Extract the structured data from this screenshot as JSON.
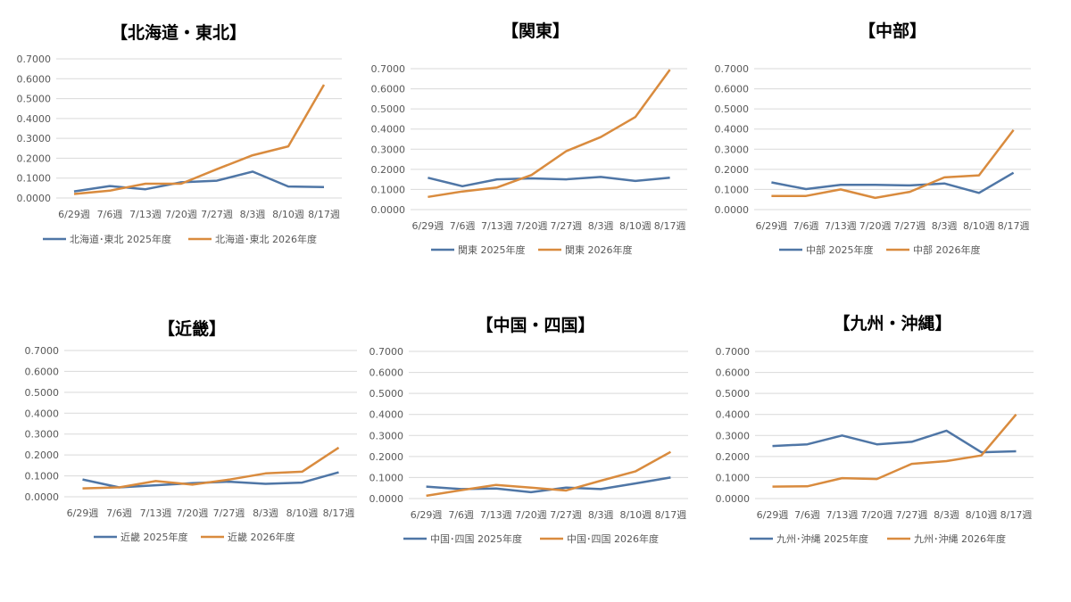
{
  "colors": {
    "s2025": "#4F76A6",
    "s2026": "#D98B3E",
    "grid": "#D9D9D9"
  },
  "chart_data": [
    {
      "type": "line",
      "title": "【北海道・東北】",
      "categories": [
        "6/29週",
        "7/6週",
        "7/13週",
        "7/20週",
        "7/27週",
        "8/3週",
        "8/10週",
        "8/17週"
      ],
      "ylim": [
        0,
        0.7
      ],
      "yticks": [
        "0.0000",
        "0.1000",
        "0.2000",
        "0.3000",
        "0.4000",
        "0.5000",
        "0.6000",
        "0.7000"
      ],
      "grid": true,
      "legend": "bottom",
      "series": [
        {
          "name": "北海道･東北 2025年度",
          "values": [
            0.033,
            0.06,
            0.044,
            0.079,
            0.087,
            0.133,
            0.058,
            0.055
          ]
        },
        {
          "name": "北海道･東北 2026年度",
          "values": [
            0.02,
            0.037,
            0.072,
            0.072,
            0.145,
            0.215,
            0.26,
            0.57
          ]
        }
      ]
    },
    {
      "type": "line",
      "title": "【関東】",
      "categories": [
        "6/29週",
        "7/6週",
        "7/13週",
        "7/20週",
        "7/27週",
        "8/3週",
        "8/10週",
        "8/17週"
      ],
      "ylim": [
        0,
        0.7
      ],
      "yticks": [
        "0.0000",
        "0.1000",
        "0.2000",
        "0.3000",
        "0.4000",
        "0.5000",
        "0.6000",
        "0.7000"
      ],
      "grid": true,
      "legend": "bottom",
      "series": [
        {
          "name": "関東 2025年度",
          "values": [
            0.158,
            0.116,
            0.15,
            0.155,
            0.15,
            0.162,
            0.142,
            0.158
          ]
        },
        {
          "name": "関東 2026年度",
          "values": [
            0.063,
            0.09,
            0.11,
            0.172,
            0.29,
            0.36,
            0.46,
            0.695
          ]
        }
      ]
    },
    {
      "type": "line",
      "title": "【中部】",
      "categories": [
        "6/29週",
        "7/6週",
        "7/13週",
        "7/20週",
        "7/27週",
        "8/3週",
        "8/10週",
        "8/17週"
      ],
      "ylim": [
        0,
        0.7
      ],
      "yticks": [
        "0.0000",
        "0.1000",
        "0.2000",
        "0.3000",
        "0.4000",
        "0.5000",
        "0.6000",
        "0.7000"
      ],
      "grid": true,
      "legend": "bottom",
      "series": [
        {
          "name": "中部 2025年度",
          "values": [
            0.135,
            0.102,
            0.123,
            0.123,
            0.12,
            0.13,
            0.083,
            0.183
          ]
        },
        {
          "name": "中部 2026年度",
          "values": [
            0.068,
            0.068,
            0.1,
            0.058,
            0.088,
            0.16,
            0.17,
            0.395
          ]
        }
      ]
    },
    {
      "type": "line",
      "title": "【近畿】",
      "categories": [
        "6/29週",
        "7/6週",
        "7/13週",
        "7/20週",
        "7/27週",
        "8/3週",
        "8/10週",
        "8/17週"
      ],
      "ylim": [
        0,
        0.7
      ],
      "yticks": [
        "0.0000",
        "0.1000",
        "0.2000",
        "0.3000",
        "0.4000",
        "0.5000",
        "0.6000",
        "0.7000"
      ],
      "grid": true,
      "legend": "bottom",
      "series": [
        {
          "name": "近畿 2025年度",
          "values": [
            0.083,
            0.045,
            0.055,
            0.065,
            0.072,
            0.062,
            0.068,
            0.117
          ]
        },
        {
          "name": "近畿 2026年度",
          "values": [
            0.04,
            0.045,
            0.075,
            0.058,
            0.082,
            0.112,
            0.12,
            0.235
          ]
        }
      ]
    },
    {
      "type": "line",
      "title": "【中国・四国】",
      "categories": [
        "6/29週",
        "7/6週",
        "7/13週",
        "7/20週",
        "7/27週",
        "8/3週",
        "8/10週",
        "8/17週"
      ],
      "ylim": [
        0,
        0.7
      ],
      "yticks": [
        "0.0000",
        "0.1000",
        "0.2000",
        "0.3000",
        "0.4000",
        "0.5000",
        "0.6000",
        "0.7000"
      ],
      "grid": true,
      "legend": "bottom",
      "series": [
        {
          "name": "中国･四国 2025年度",
          "values": [
            0.057,
            0.045,
            0.048,
            0.03,
            0.052,
            0.045,
            0.072,
            0.1
          ]
        },
        {
          "name": "中国･四国 2026年度",
          "values": [
            0.013,
            0.04,
            0.065,
            0.052,
            0.038,
            0.085,
            0.13,
            0.222
          ]
        }
      ]
    },
    {
      "type": "line",
      "title": "【九州・沖縄】",
      "categories": [
        "6/29週",
        "7/6週",
        "7/13週",
        "7/20週",
        "7/27週",
        "8/3週",
        "8/10週",
        "8/17週"
      ],
      "ylim": [
        0,
        0.7
      ],
      "yticks": [
        "0.0000",
        "0.1000",
        "0.2000",
        "0.3000",
        "0.4000",
        "0.5000",
        "0.6000",
        "0.7000"
      ],
      "grid": true,
      "legend": "bottom",
      "series": [
        {
          "name": "九州･沖縄 2025年度",
          "values": [
            0.25,
            0.258,
            0.3,
            0.258,
            0.27,
            0.323,
            0.22,
            0.225
          ]
        },
        {
          "name": "九州･沖縄 2026年度",
          "values": [
            0.057,
            0.058,
            0.097,
            0.093,
            0.165,
            0.178,
            0.205,
            0.4
          ]
        }
      ]
    }
  ]
}
